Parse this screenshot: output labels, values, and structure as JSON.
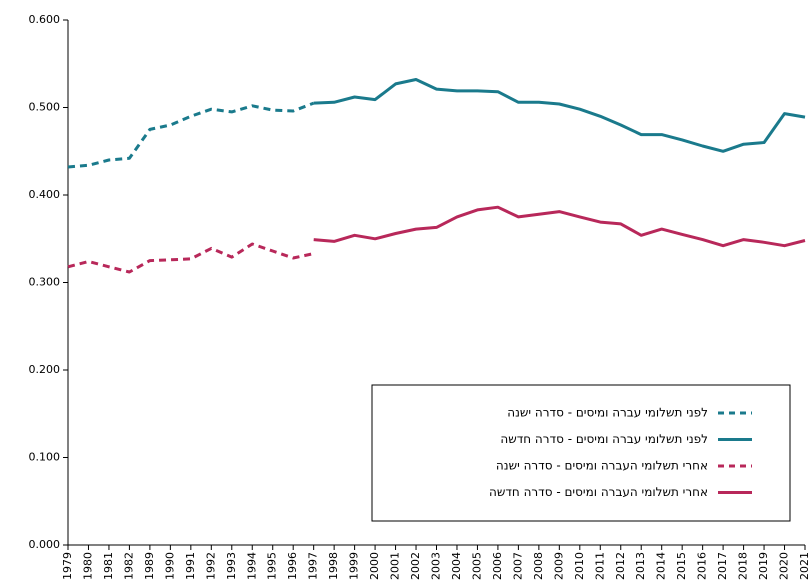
{
  "chart_data": {
    "type": "line",
    "categories": [
      "1979",
      "1980",
      "1981",
      "1982",
      "1989",
      "1990",
      "1991",
      "1992",
      "1993",
      "1994",
      "1995",
      "1996",
      "1997",
      "1998",
      "1999",
      "2000",
      "2001",
      "2002",
      "2003",
      "2004",
      "2005",
      "2006",
      "2007",
      "2008",
      "2009",
      "2010",
      "2011",
      "2012",
      "2013",
      "2014",
      "2015",
      "2016",
      "2017",
      "2018",
      "2019",
      "2020",
      "2021"
    ],
    "ylim": [
      0,
      0.6
    ],
    "yticks": [
      {
        "value": 0,
        "label": "0.000"
      },
      {
        "value": 0.1,
        "label": "0.100"
      },
      {
        "value": 0.2,
        "label": "0.200"
      },
      {
        "value": 0.3,
        "label": "0.300"
      },
      {
        "value": 0.4,
        "label": "0.400"
      },
      {
        "value": 0.5,
        "label": "0.500"
      },
      {
        "value": 0.6,
        "label": "0.600"
      }
    ],
    "series": [
      {
        "name": "לפני תשלומי עברה ומיסים - סדרה ישנה",
        "color": "#1a7a8c",
        "dashed": true,
        "values": [
          0.432,
          0.434,
          0.44,
          0.442,
          0.475,
          0.48,
          0.49,
          0.498,
          0.495,
          0.502,
          0.497,
          0.496,
          0.505,
          null,
          null,
          null,
          null,
          null,
          null,
          null,
          null,
          null,
          null,
          null,
          null,
          null,
          null,
          null,
          null,
          null,
          null,
          null,
          null,
          null,
          null,
          null,
          null
        ]
      },
      {
        "name": "לפני תשלומי עברה ומיסים - סדרה חדשה",
        "color": "#1a7a8c",
        "dashed": false,
        "values": [
          null,
          null,
          null,
          null,
          null,
          null,
          null,
          null,
          null,
          null,
          null,
          null,
          0.505,
          0.506,
          0.512,
          0.509,
          0.527,
          0.532,
          0.521,
          0.519,
          0.519,
          0.518,
          0.506,
          0.506,
          0.504,
          0.498,
          0.49,
          0.48,
          0.469,
          0.469,
          0.463,
          0.456,
          0.45,
          0.458,
          0.46,
          0.493,
          0.489
        ]
      },
      {
        "name": "אחרי תשלומי  העברה ומיסים - סדרה ישנה",
        "color": "#b8285a",
        "dashed": true,
        "values": [
          0.318,
          0.324,
          0.318,
          0.312,
          0.325,
          0.326,
          0.327,
          0.339,
          0.329,
          0.344,
          0.336,
          0.328,
          0.333,
          null,
          null,
          null,
          null,
          null,
          null,
          null,
          null,
          null,
          null,
          null,
          null,
          null,
          null,
          null,
          null,
          null,
          null,
          null,
          null,
          null,
          null,
          null,
          null
        ]
      },
      {
        "name": "אחרי תשלומי  העברה ומיסים - סדרה חדשה",
        "color": "#b8285a",
        "dashed": false,
        "values": [
          null,
          null,
          null,
          null,
          null,
          null,
          null,
          null,
          null,
          null,
          null,
          null,
          0.349,
          0.347,
          0.354,
          0.35,
          0.356,
          0.361,
          0.363,
          0.375,
          0.383,
          0.386,
          0.375,
          0.378,
          0.381,
          0.375,
          0.369,
          0.367,
          0.354,
          0.361,
          0.355,
          0.349,
          0.342,
          0.349,
          0.346,
          0.342,
          0.348
        ]
      }
    ]
  }
}
